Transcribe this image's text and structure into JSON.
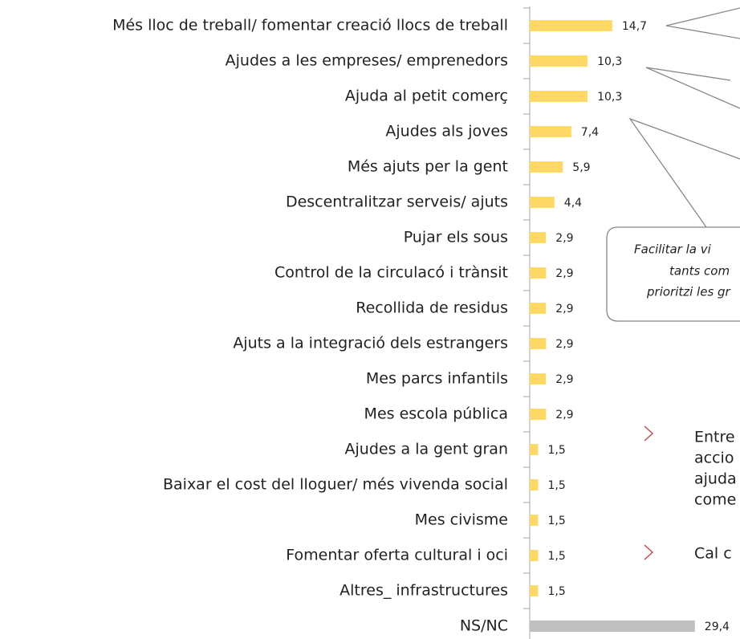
{
  "chart_data": {
    "type": "bar",
    "orientation": "horizontal",
    "categories": [
      "Més lloc de treball/ fomentar creació llocs de  treball",
      "Ajudes a les empreses/ emprenedors",
      "Ajuda al petit comerç",
      "Ajudes als joves",
      "Més ajuts per la gent",
      "Descentralitzar serveis/ ajuts",
      "Pujar els sous",
      "Control de la circulacó i trànsit",
      "Recollida de residus",
      "Ajuts a la integració dels estrangers",
      "Mes parcs infantils",
      "Mes escola pública",
      "Ajudes a la gent gran",
      "Baixar el cost del lloguer/ més vivenda social",
      "Mes civisme",
      "Fomentar oferta cultural i oci",
      "Altres_ infrastructures",
      "NS/NC"
    ],
    "values": [
      14.7,
      10.3,
      10.3,
      7.4,
      5.9,
      4.4,
      2.9,
      2.9,
      2.9,
      2.9,
      2.9,
      2.9,
      1.5,
      1.5,
      1.5,
      1.5,
      1.5,
      29.4
    ],
    "value_labels": [
      "14,7",
      "10,3",
      "10,3",
      "7,4",
      "5,9",
      "4,4",
      "2,9",
      "2,9",
      "2,9",
      "2,9",
      "2,9",
      "2,9",
      "1,5",
      "1,5",
      "1,5",
      "1,5",
      "1,5",
      "29,4"
    ],
    "colors": [
      "#ffd966",
      "#ffd966",
      "#ffd966",
      "#ffd966",
      "#ffd966",
      "#ffd966",
      "#ffd966",
      "#ffd966",
      "#ffd966",
      "#ffd966",
      "#ffd966",
      "#ffd966",
      "#ffd966",
      "#ffd966",
      "#ffd966",
      "#ffd966",
      "#ffd966",
      "#bfbfbf"
    ]
  },
  "annotation": {
    "lines": [
      "Facilitar la vi",
      "tants com",
      "prioritzi les gr"
    ]
  },
  "bullets": [
    [
      "Entre",
      "accio",
      "ajuda",
      "come"
    ],
    [
      "Cal c"
    ]
  ]
}
